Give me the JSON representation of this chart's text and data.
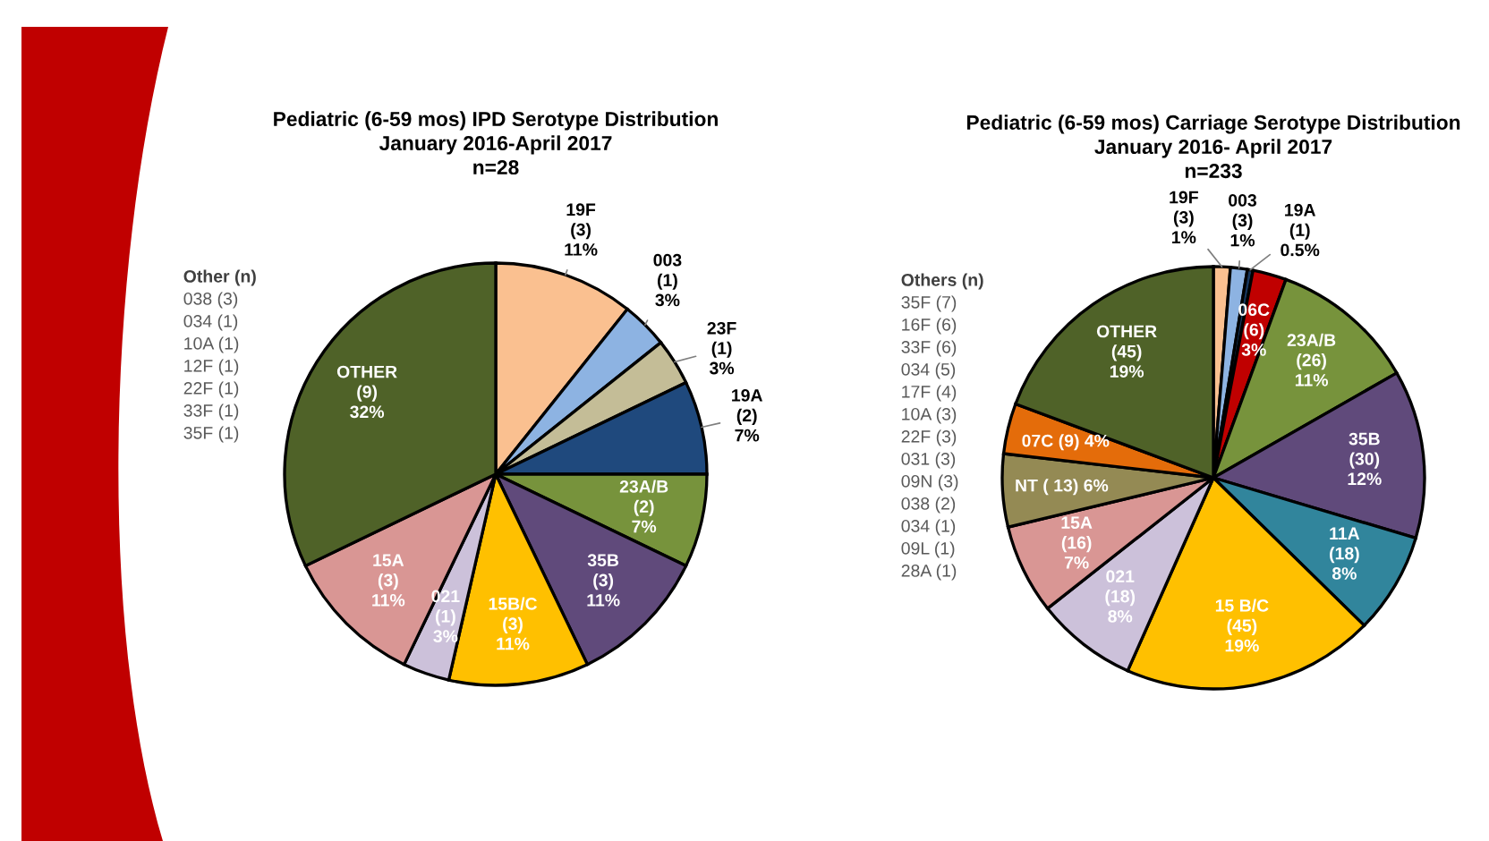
{
  "chart_data": [
    {
      "type": "pie",
      "title": "Pediatric (6-59 mos) IPD Serotype Distribution\nJanuary 2016-April 2017\nn=28",
      "categories": [
        "19F",
        "003",
        "23F",
        "19A",
        "23A/B",
        "35B",
        "15B/C",
        "021",
        "15A",
        "OTHER"
      ],
      "values": [
        3,
        1,
        1,
        2,
        2,
        3,
        3,
        1,
        3,
        9
      ],
      "colors": [
        "#fac090",
        "#8db3e2",
        "#c4bd97",
        "#1f497d",
        "#77933c",
        "#604a7b",
        "#ffc000",
        "#ccc1da",
        "#d99694",
        "#4f6228"
      ],
      "value_labels": [
        "(3)\n11%",
        "(1)\n3%",
        "(1)\n3%",
        "(2)\n7%",
        "(2)\n7%",
        "(3)\n11%",
        "(3)\n11%",
        "(1)\n3%",
        "(3)\n11%",
        "(9)\n32%"
      ],
      "annotations": [
        "Other (n)",
        "038 (3)",
        "034 (1)",
        "10A (1)",
        "12F (1)",
        "22F (1)",
        "33F (1)",
        "35F (1)"
      ]
    },
    {
      "type": "pie",
      "title": "Pediatric (6-59 mos) Carriage Serotype Distribution\nJanuary 2016- April 2017\nn=233",
      "categories": [
        "19F",
        "003",
        "19A",
        "06C",
        "23A/B",
        "35B",
        "11A",
        "15 B/C",
        "021",
        "15A",
        "NT",
        "07C",
        "OTHER"
      ],
      "values": [
        3,
        3,
        1,
        6,
        26,
        30,
        18,
        45,
        18,
        16,
        13,
        9,
        45
      ],
      "colors": [
        "#fac090",
        "#8db3e2",
        "#17375e",
        "#c00000",
        "#77933c",
        "#604a7b",
        "#31859c",
        "#ffc000",
        "#ccc1da",
        "#d99694",
        "#948a54",
        "#e46c0a",
        "#4f6228"
      ],
      "value_labels": [
        "(3)\n1%",
        "(3)\n1%",
        "(1)\n0.5%",
        "(6)\n3%",
        "(26)\n11%",
        "(30)\n12%",
        "(18)\n8%",
        "(45)\n19%",
        "(18)\n8%",
        "(16)\n7%",
        "( 13) 6%",
        "(9) 4%",
        "(45)\n19%"
      ],
      "annotations": [
        "Others (n)",
        "35F (7)",
        "16F (6)",
        "33F (6)",
        "034 (5)",
        "17F (4)",
        "10A (3)",
        "22F (3)",
        "031 (3)",
        "09N (3)",
        "038 (2)",
        "034 (1)",
        "09L (1)",
        "28A (1)"
      ]
    }
  ]
}
